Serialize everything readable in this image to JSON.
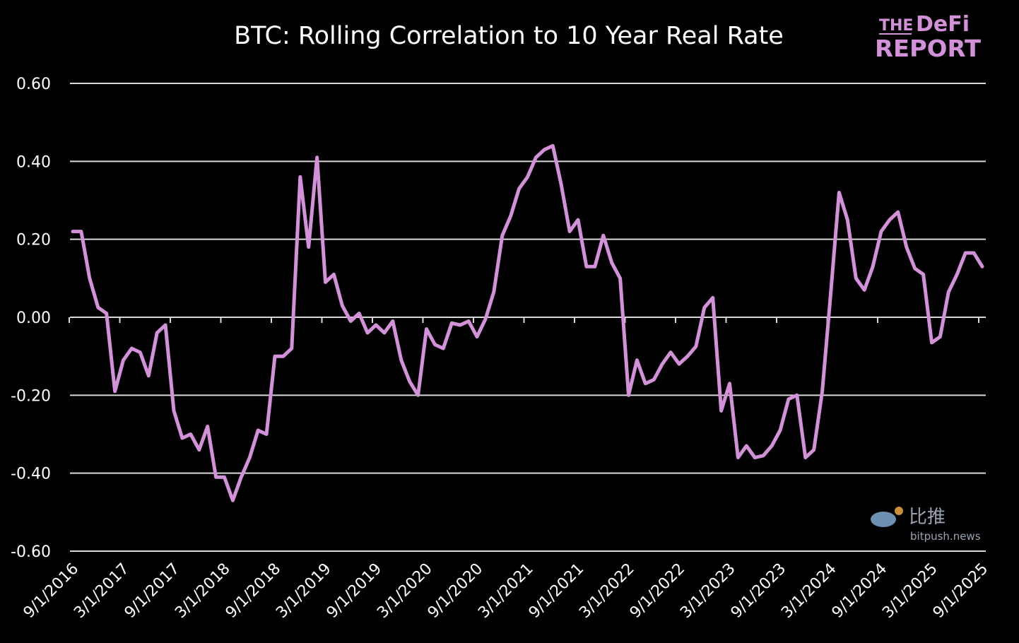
{
  "chart_data": {
    "type": "line",
    "title": "BTC: Rolling Correlation to 10 Year Real Rate",
    "xlabel": "",
    "ylabel": "",
    "ylim": [
      -0.6,
      0.6
    ],
    "y_ticks": [
      "0.60",
      "0.40",
      "0.20",
      "0.00",
      "-0.20",
      "-0.40",
      "-0.60"
    ],
    "y_tick_values": [
      0.6,
      0.4,
      0.2,
      0,
      -0.2,
      -0.4,
      -0.6
    ],
    "x_ticks": [
      "9/1/2016",
      "3/1/2017",
      "9/1/2017",
      "3/1/2018",
      "9/1/2018",
      "3/1/2019",
      "9/1/2019",
      "3/1/2020",
      "9/1/2020",
      "3/1/2021",
      "9/1/2021",
      "3/1/2022",
      "9/1/2022",
      "3/1/2023",
      "9/1/2023",
      "3/1/2024",
      "9/1/2024",
      "3/1/2025",
      "9/1/2025"
    ],
    "grid": "horizontal",
    "line_color": "#d391d9",
    "background": "#000000",
    "x": [
      "9/1/2016",
      "10/1/2016",
      "11/1/2016",
      "12/1/2016",
      "1/1/2017",
      "2/1/2017",
      "3/1/2017",
      "4/1/2017",
      "5/1/2017",
      "6/1/2017",
      "7/1/2017",
      "8/1/2017",
      "9/1/2017",
      "10/1/2017",
      "11/1/2017",
      "12/1/2017",
      "1/1/2018",
      "2/1/2018",
      "3/1/2018",
      "4/1/2018",
      "5/1/2018",
      "6/1/2018",
      "7/1/2018",
      "8/1/2018",
      "9/1/2018",
      "10/1/2018",
      "11/1/2018",
      "12/1/2018",
      "1/1/2019",
      "2/1/2019",
      "3/1/2019",
      "4/1/2019",
      "5/1/2019",
      "6/1/2019",
      "7/1/2019",
      "8/1/2019",
      "9/1/2019",
      "10/1/2019",
      "11/1/2019",
      "12/1/2019",
      "1/1/2020",
      "2/1/2020",
      "3/1/2020",
      "4/1/2020",
      "5/1/2020",
      "6/1/2020",
      "7/1/2020",
      "8/1/2020",
      "9/1/2020",
      "10/1/2020",
      "11/1/2020",
      "12/1/2020",
      "1/1/2021",
      "2/1/2021",
      "3/1/2021",
      "4/1/2021",
      "5/1/2021",
      "6/1/2021",
      "7/1/2021",
      "8/1/2021",
      "9/1/2021",
      "10/1/2021",
      "11/1/2021",
      "12/1/2021",
      "1/1/2022",
      "2/1/2022",
      "3/1/2022",
      "4/1/2022",
      "5/1/2022",
      "6/1/2022",
      "7/1/2022",
      "8/1/2022",
      "9/1/2022",
      "10/1/2022",
      "11/1/2022",
      "12/1/2022",
      "1/1/2023",
      "2/1/2023",
      "3/1/2023",
      "4/1/2023",
      "5/1/2023",
      "6/1/2023",
      "7/1/2023",
      "8/1/2023",
      "9/1/2023",
      "10/1/2023",
      "11/1/2023",
      "12/1/2023",
      "1/1/2024",
      "2/1/2024",
      "3/1/2024",
      "4/1/2024",
      "5/1/2024",
      "6/1/2024",
      "7/1/2024",
      "8/1/2024",
      "9/1/2024",
      "10/1/2024",
      "11/1/2024",
      "12/1/2024",
      "1/1/2025",
      "2/1/2025",
      "3/1/2025",
      "4/1/2025",
      "5/1/2025",
      "6/1/2025",
      "7/1/2025",
      "8/1/2025",
      "9/1/2025"
    ],
    "series": [
      {
        "values": [
          0.22,
          0.22,
          0.1,
          0.025,
          0.01,
          -0.19,
          -0.11,
          -0.08,
          -0.09,
          -0.15,
          -0.04,
          -0.02,
          -0.24,
          -0.31,
          -0.3,
          -0.34,
          -0.28,
          -0.41,
          -0.41,
          -0.47,
          -0.41,
          -0.36,
          -0.29,
          -0.3,
          -0.1,
          -0.1,
          -0.08,
          0.36,
          0.18,
          0.41,
          0.09,
          0.11,
          0.03,
          -0.01,
          0.01,
          -0.04,
          -0.02,
          -0.04,
          -0.01,
          -0.11,
          -0.165,
          -0.2,
          -0.03,
          -0.07,
          -0.08,
          -0.015,
          -0.02,
          -0.01,
          -0.05,
          -0.005,
          0.065,
          0.21,
          0.26,
          0.33,
          0.36,
          0.41,
          0.43,
          0.44,
          0.34,
          0.22,
          0.25,
          0.13,
          0.13,
          0.21,
          0.14,
          0.1,
          -0.2,
          -0.11,
          -0.17,
          -0.16,
          -0.12,
          -0.09,
          -0.12,
          -0.1,
          -0.075,
          0.025,
          0.05,
          -0.24,
          -0.17,
          -0.36,
          -0.33,
          -0.36,
          -0.355,
          -0.33,
          -0.29,
          -0.21,
          -0.2,
          -0.36,
          -0.34,
          -0.19,
          0.06,
          0.32,
          0.25,
          0.1,
          0.07,
          0.13,
          0.22,
          0.25,
          0.27,
          0.18,
          0.125,
          0.11,
          -0.065,
          -0.05,
          0.065,
          0.11,
          0.165,
          0.165,
          0.13
        ]
      }
    ]
  },
  "logo": {
    "line1_small": "THE",
    "line1_big": "DeFi",
    "line2": "REPORT"
  },
  "watermark": {
    "cn": "比推",
    "site": "bitpush.news"
  }
}
